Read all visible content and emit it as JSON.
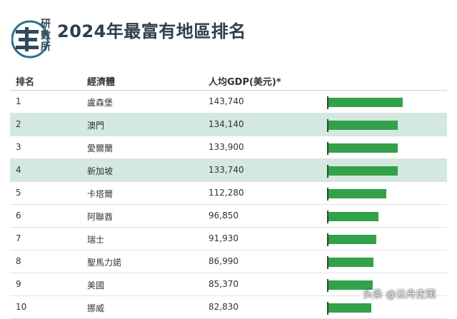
{
  "logo": {
    "text_lines": [
      "研",
      "數",
      "所"
    ]
  },
  "title": "2024年最富有地區排名",
  "columns": {
    "rank": "排名",
    "economy": "經濟體",
    "gdp": "人均GDP(美元)*"
  },
  "highlight_color": "#d2e8e1",
  "bar_color": "#33a14a",
  "chart_data": {
    "type": "bar",
    "title": "2024年最富有地區排名",
    "ylabel": "人均GDP(美元)*",
    "categories": [
      "盧森堡",
      "澳門",
      "愛爾蘭",
      "新加坡",
      "卡塔爾",
      "阿聯酋",
      "瑞士",
      "聖馬力諾",
      "美國",
      "挪威"
    ],
    "values": [
      143740,
      134140,
      133900,
      133740,
      112280,
      96850,
      91930,
      86990,
      85370,
      82830
    ],
    "grid": false
  },
  "rows": [
    {
      "rank": "1",
      "name": "盧森堡",
      "value": "143,740",
      "highlight": false
    },
    {
      "rank": "2",
      "name": "澳門",
      "value": "134,140",
      "highlight": true
    },
    {
      "rank": "3",
      "name": "愛爾蘭",
      "value": "133,900",
      "highlight": false
    },
    {
      "rank": "4",
      "name": "新加坡",
      "value": "133,740",
      "highlight": true
    },
    {
      "rank": "5",
      "name": "卡塔爾",
      "value": "112,280",
      "highlight": false
    },
    {
      "rank": "6",
      "name": "阿聯酋",
      "value": "96,850",
      "highlight": false
    },
    {
      "rank": "7",
      "name": "瑞士",
      "value": "91,930",
      "highlight": false
    },
    {
      "rank": "8",
      "name": "聖馬力諾",
      "value": "86,990",
      "highlight": false
    },
    {
      "rank": "9",
      "name": "美國",
      "value": "85,370",
      "highlight": false
    },
    {
      "rank": "10",
      "name": "挪威",
      "value": "82,830",
      "highlight": false
    }
  ],
  "watermark": "头条 @云舟史策"
}
